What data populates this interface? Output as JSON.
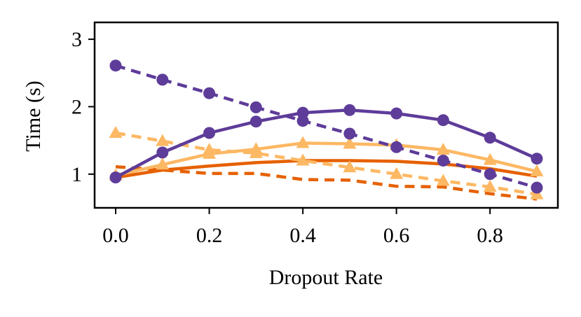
{
  "chart_data": {
    "type": "line",
    "title": "",
    "xlabel": "Dropout Rate",
    "ylabel": "Time (s)",
    "xlim": [
      -0.045,
      0.945
    ],
    "ylim": [
      0.5,
      3.25
    ],
    "xticks": [
      0.0,
      0.2,
      0.4,
      0.6,
      0.8
    ],
    "xtick_labels": [
      "0.0",
      "0.2",
      "0.4",
      "0.6",
      "0.8"
    ],
    "yticks": [
      1,
      2,
      3
    ],
    "ytick_labels": [
      "1",
      "2",
      "3"
    ],
    "grid": false,
    "legend": "none",
    "x": [
      0.0,
      0.1,
      0.2,
      0.3,
      0.4,
      0.5,
      0.6,
      0.7,
      0.8,
      0.9
    ],
    "series": [
      {
        "name": "dark orange solid",
        "color": "#e66101",
        "line": "solid",
        "marker": "none",
        "values": [
          0.95,
          1.06,
          1.12,
          1.17,
          1.2,
          1.2,
          1.19,
          1.15,
          1.08,
          0.97
        ]
      },
      {
        "name": "dark orange dashed",
        "color": "#e66101",
        "line": "dashed",
        "marker": "none",
        "values": [
          1.11,
          1.06,
          1.01,
          1.01,
          0.92,
          0.91,
          0.82,
          0.81,
          0.71,
          0.63
        ]
      },
      {
        "name": "light orange solid triangles",
        "color": "#fdb863",
        "line": "solid",
        "marker": "triangle",
        "values": [
          0.98,
          1.14,
          1.3,
          1.37,
          1.46,
          1.45,
          1.43,
          1.36,
          1.21,
          1.04
        ]
      },
      {
        "name": "light orange dashed triangles",
        "color": "#fdb863",
        "line": "dashed",
        "marker": "triangle",
        "values": [
          1.61,
          1.49,
          1.36,
          1.31,
          1.2,
          1.1,
          1.0,
          0.9,
          0.81,
          0.7
        ]
      },
      {
        "name": "purple solid circles",
        "color": "#5e3c99",
        "line": "solid",
        "marker": "circle",
        "values": [
          0.95,
          1.32,
          1.61,
          1.78,
          1.91,
          1.95,
          1.9,
          1.8,
          1.54,
          1.23
        ]
      },
      {
        "name": "purple dashed circles",
        "color": "#5e3c99",
        "line": "dashed",
        "marker": "circle",
        "values": [
          2.61,
          2.4,
          2.2,
          1.99,
          1.79,
          1.6,
          1.4,
          1.2,
          1.0,
          0.8
        ]
      }
    ]
  }
}
